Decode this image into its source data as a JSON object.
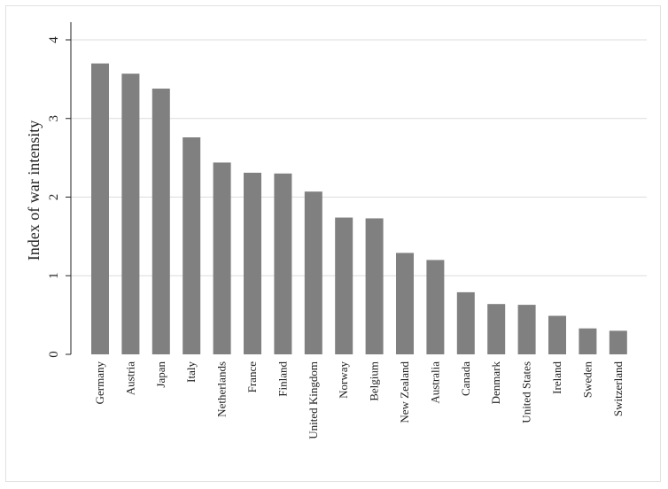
{
  "chart_data": {
    "type": "bar",
    "title": "",
    "xlabel": "",
    "ylabel": "Index of war intensity",
    "ylim": [
      0,
      4
    ],
    "yticks": [
      0,
      1,
      2,
      3,
      4
    ],
    "grid": true,
    "bar_color": "#808080",
    "grid_color": "#dcdcdc",
    "categories": [
      "Germany",
      "Austria",
      "Japan",
      "Italy",
      "Netherlands",
      "France",
      "Finland",
      "United Kingdom",
      "Norway",
      "Belgium",
      "New Zealand",
      "Australia",
      "Canada",
      "Denmark",
      "United States",
      "Ireland",
      "Sweden",
      "Switzerland"
    ],
    "values": [
      3.7,
      3.57,
      3.38,
      2.76,
      2.44,
      2.31,
      2.3,
      2.07,
      1.74,
      1.73,
      1.29,
      1.2,
      0.79,
      0.64,
      0.63,
      0.49,
      0.33,
      0.3
    ]
  }
}
